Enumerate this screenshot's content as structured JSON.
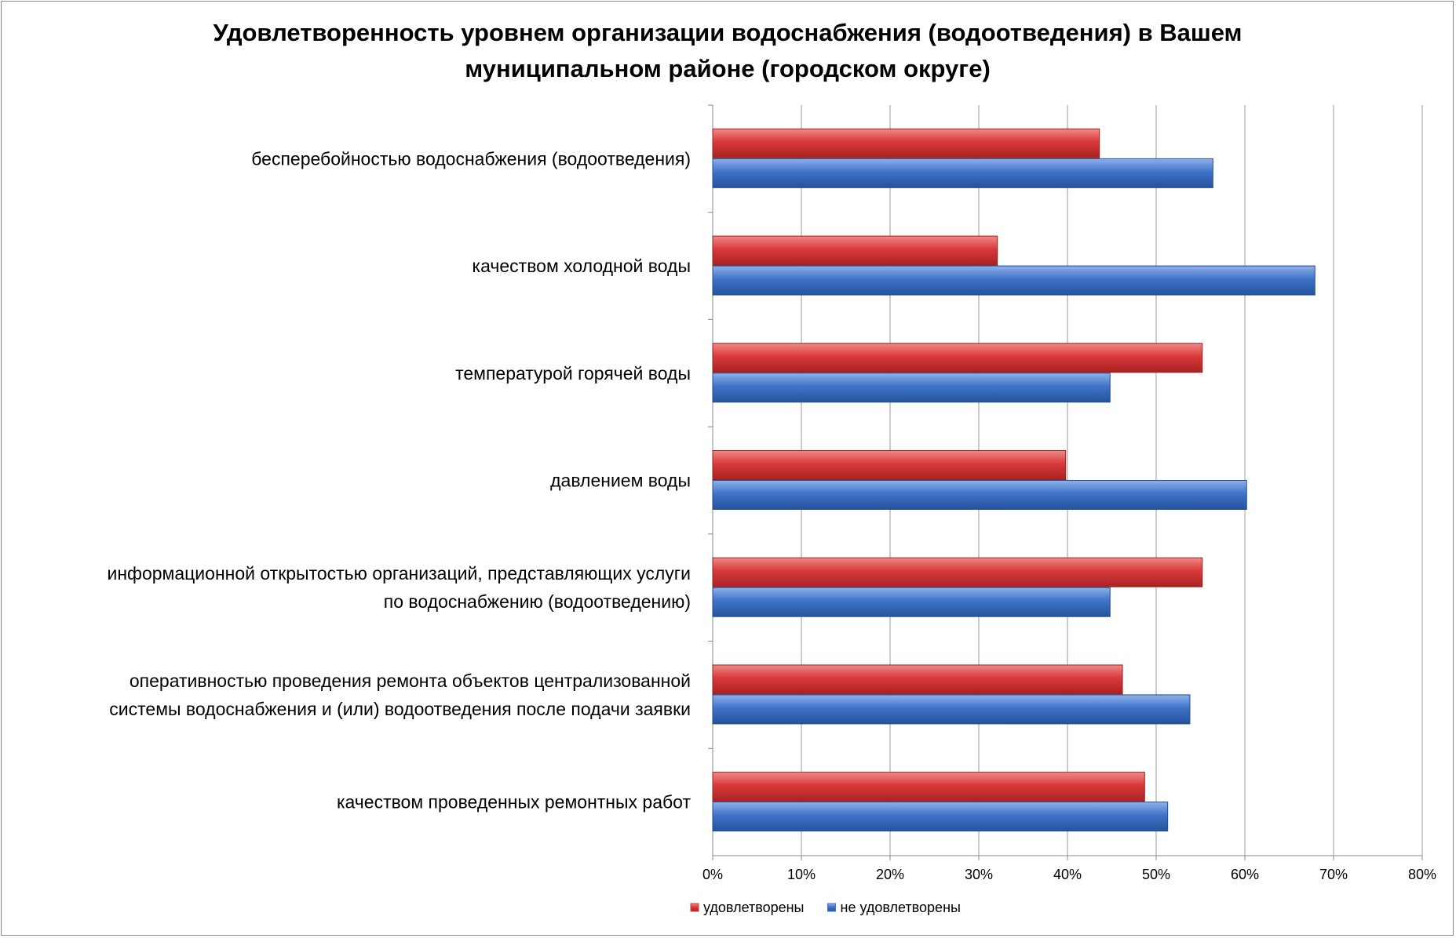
{
  "chart_data": {
    "type": "bar",
    "orientation": "horizontal",
    "title_lines": [
      "Удовлетворенность уровнем организации водоснабжения (водоотведения) в Вашем",
      "муниципальном районе (городском округе)"
    ],
    "categories": [
      [
        "бесперебойностью  водоснабжения (водоотведения)"
      ],
      [
        "качеством холодной воды"
      ],
      [
        "температурой горячей воды"
      ],
      [
        "давлением воды"
      ],
      [
        "информационной открытостью организаций, представляющих услуги",
        "по водоснабжению (водоотведению)"
      ],
      [
        "оперативностью проведения ремонта объектов централизованной",
        "системы водоснабжения и (или) водоотведения после подачи заявки"
      ],
      [
        "качеством проведенных ремонтных работ"
      ]
    ],
    "series": [
      {
        "name": "удовлетворены",
        "color": "#d9393a",
        "values": [
          43.6,
          32.1,
          55.2,
          39.8,
          55.2,
          46.2,
          48.7
        ]
      },
      {
        "name": "не удовлетворены",
        "color": "#3f74c9",
        "values": [
          56.4,
          67.9,
          44.8,
          60.2,
          44.8,
          53.8,
          51.3
        ]
      }
    ],
    "xlim": [
      0,
      80
    ],
    "xticks": [
      "0%",
      "10%",
      "20%",
      "30%",
      "40%",
      "50%",
      "60%",
      "70%",
      "80%"
    ],
    "grid": true,
    "legend": "bottom"
  }
}
